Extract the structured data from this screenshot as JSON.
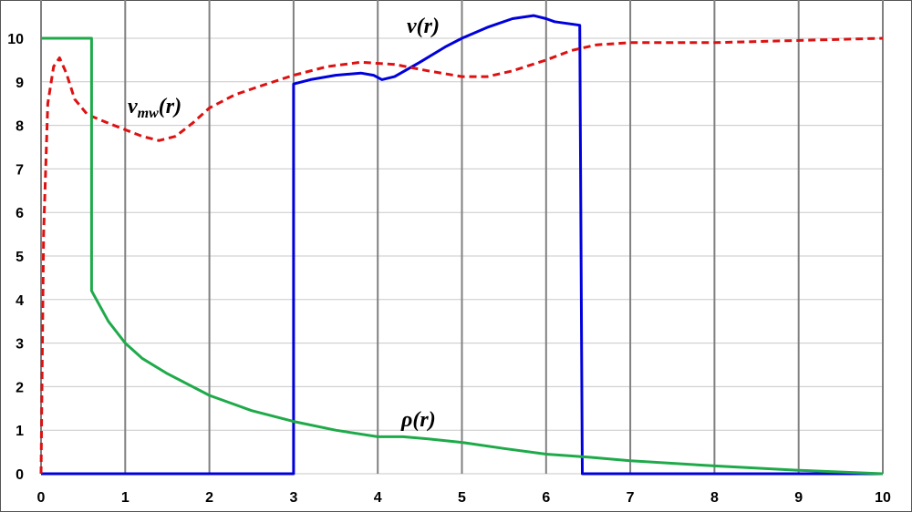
{
  "chart_data": {
    "type": "line",
    "title": "",
    "xlabel": "",
    "ylabel": "",
    "xlim": [
      0,
      10
    ],
    "ylim": [
      0,
      10
    ],
    "x_ticks": [
      "0",
      "1",
      "2",
      "3",
      "4",
      "5",
      "6",
      "7",
      "8",
      "9",
      "10"
    ],
    "y_ticks": [
      "0",
      "1",
      "2",
      "3",
      "4",
      "5",
      "6",
      "7",
      "8",
      "9",
      "10"
    ],
    "grid": {
      "vertical": true,
      "horizontal": true
    },
    "legend": "none",
    "colors": {
      "grid_vertical": "#808080",
      "grid_horizontal": "#c8c8c8",
      "v": "#0000dd",
      "vmw": "#dd1111",
      "rho": "#1faa4a"
    },
    "series": [
      {
        "key": "v",
        "label_main": "v(r)",
        "label_sub": "",
        "style": "solid",
        "points": [
          [
            0,
            0
          ],
          [
            3.0,
            0
          ],
          [
            3.0,
            8.95
          ],
          [
            3.2,
            9.05
          ],
          [
            3.5,
            9.15
          ],
          [
            3.8,
            9.2
          ],
          [
            3.95,
            9.15
          ],
          [
            4.05,
            9.05
          ],
          [
            4.2,
            9.12
          ],
          [
            4.5,
            9.45
          ],
          [
            4.8,
            9.8
          ],
          [
            5.0,
            10.0
          ],
          [
            5.3,
            10.25
          ],
          [
            5.6,
            10.45
          ],
          [
            5.85,
            10.52
          ],
          [
            6.0,
            10.45
          ],
          [
            6.1,
            10.38
          ],
          [
            6.4,
            10.3
          ],
          [
            6.43,
            0
          ],
          [
            10,
            0
          ]
        ]
      },
      {
        "key": "vmw",
        "label_main": "v",
        "label_sub": "mw",
        "label_tail": "(r)",
        "style": "dashed",
        "points": [
          [
            0,
            0
          ],
          [
            0.03,
            5.5
          ],
          [
            0.08,
            8.5
          ],
          [
            0.15,
            9.35
          ],
          [
            0.22,
            9.55
          ],
          [
            0.3,
            9.2
          ],
          [
            0.4,
            8.6
          ],
          [
            0.55,
            8.25
          ],
          [
            0.8,
            8.05
          ],
          [
            1.0,
            7.9
          ],
          [
            1.2,
            7.75
          ],
          [
            1.4,
            7.65
          ],
          [
            1.6,
            7.75
          ],
          [
            1.8,
            8.05
          ],
          [
            2.0,
            8.4
          ],
          [
            2.3,
            8.7
          ],
          [
            2.6,
            8.9
          ],
          [
            3.0,
            9.15
          ],
          [
            3.4,
            9.35
          ],
          [
            3.8,
            9.45
          ],
          [
            4.2,
            9.4
          ],
          [
            4.6,
            9.25
          ],
          [
            5.0,
            9.12
          ],
          [
            5.3,
            9.12
          ],
          [
            5.6,
            9.25
          ],
          [
            6.0,
            9.5
          ],
          [
            6.3,
            9.72
          ],
          [
            6.6,
            9.85
          ],
          [
            7.0,
            9.9
          ],
          [
            8.0,
            9.9
          ],
          [
            9.0,
            9.95
          ],
          [
            10.0,
            10.0
          ]
        ]
      },
      {
        "key": "rho",
        "label_main": "ρ(r)",
        "label_sub": "",
        "style": "solid",
        "points": [
          [
            0,
            10
          ],
          [
            0.6,
            10
          ],
          [
            0.6,
            4.2
          ],
          [
            0.8,
            3.5
          ],
          [
            1.0,
            3.0
          ],
          [
            1.2,
            2.65
          ],
          [
            1.5,
            2.3
          ],
          [
            2.0,
            1.8
          ],
          [
            2.5,
            1.45
          ],
          [
            3.0,
            1.2
          ],
          [
            3.5,
            1.0
          ],
          [
            4.0,
            0.85
          ],
          [
            4.3,
            0.85
          ],
          [
            4.6,
            0.8
          ],
          [
            5.0,
            0.72
          ],
          [
            5.5,
            0.58
          ],
          [
            6.0,
            0.45
          ],
          [
            6.5,
            0.38
          ],
          [
            7.0,
            0.3
          ],
          [
            8.0,
            0.18
          ],
          [
            9.0,
            0.08
          ],
          [
            10.0,
            0.0
          ]
        ]
      }
    ]
  }
}
